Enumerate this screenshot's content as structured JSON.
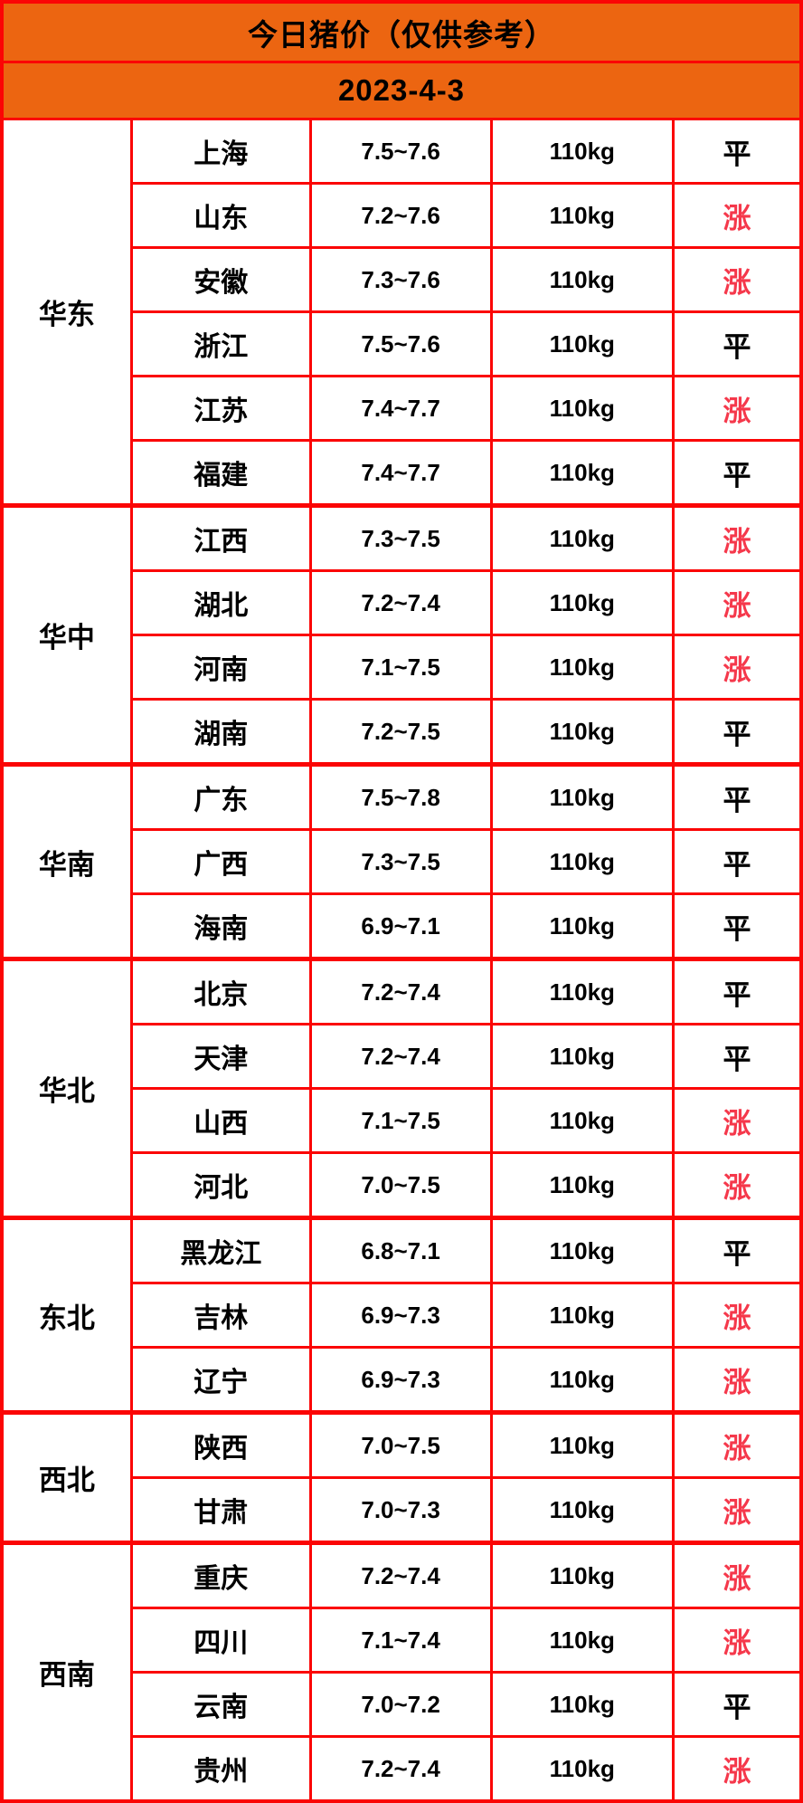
{
  "title": "今日猪价（仅供参考）",
  "date": "2023-4-3",
  "colors": {
    "header_orange": "#EC6511",
    "grid_red": "#FB0505",
    "rise_red": "#F5384B",
    "flat_black": "#000000",
    "cell_white": "#FFFFFF"
  },
  "status_legend": {
    "rise": "涨",
    "flat": "平"
  },
  "table": {
    "groups": [
      {
        "region": "华东",
        "rows": [
          {
            "province": "上海",
            "price": "7.5~7.6",
            "weight": "110kg",
            "status": "平",
            "trend": "flat"
          },
          {
            "province": "山东",
            "price": "7.2~7.6",
            "weight": "110kg",
            "status": "涨",
            "trend": "rise"
          },
          {
            "province": "安徽",
            "price": "7.3~7.6",
            "weight": "110kg",
            "status": "涨",
            "trend": "rise"
          },
          {
            "province": "浙江",
            "price": "7.5~7.6",
            "weight": "110kg",
            "status": "平",
            "trend": "flat"
          },
          {
            "province": "江苏",
            "price": "7.4~7.7",
            "weight": "110kg",
            "status": "涨",
            "trend": "rise"
          },
          {
            "province": "福建",
            "price": "7.4~7.7",
            "weight": "110kg",
            "status": "平",
            "trend": "flat"
          }
        ]
      },
      {
        "region": "华中",
        "rows": [
          {
            "province": "江西",
            "price": "7.3~7.5",
            "weight": "110kg",
            "status": "涨",
            "trend": "rise"
          },
          {
            "province": "湖北",
            "price": "7.2~7.4",
            "weight": "110kg",
            "status": "涨",
            "trend": "rise"
          },
          {
            "province": "河南",
            "price": "7.1~7.5",
            "weight": "110kg",
            "status": "涨",
            "trend": "rise"
          },
          {
            "province": "湖南",
            "price": "7.2~7.5",
            "weight": "110kg",
            "status": "平",
            "trend": "flat"
          }
        ]
      },
      {
        "region": "华南",
        "rows": [
          {
            "province": "广东",
            "price": "7.5~7.8",
            "weight": "110kg",
            "status": "平",
            "trend": "flat"
          },
          {
            "province": "广西",
            "price": "7.3~7.5",
            "weight": "110kg",
            "status": "平",
            "trend": "flat"
          },
          {
            "province": "海南",
            "price": "6.9~7.1",
            "weight": "110kg",
            "status": "平",
            "trend": "flat"
          }
        ]
      },
      {
        "region": "华北",
        "rows": [
          {
            "province": "北京",
            "price": "7.2~7.4",
            "weight": "110kg",
            "status": "平",
            "trend": "flat"
          },
          {
            "province": "天津",
            "price": "7.2~7.4",
            "weight": "110kg",
            "status": "平",
            "trend": "flat"
          },
          {
            "province": "山西",
            "price": "7.1~7.5",
            "weight": "110kg",
            "status": "涨",
            "trend": "rise"
          },
          {
            "province": "河北",
            "price": "7.0~7.5",
            "weight": "110kg",
            "status": "涨",
            "trend": "rise"
          }
        ]
      },
      {
        "region": "东北",
        "rows": [
          {
            "province": "黑龙江",
            "price": "6.8~7.1",
            "weight": "110kg",
            "status": "平",
            "trend": "flat"
          },
          {
            "province": "吉林",
            "price": "6.9~7.3",
            "weight": "110kg",
            "status": "涨",
            "trend": "rise"
          },
          {
            "province": "辽宁",
            "price": "6.9~7.3",
            "weight": "110kg",
            "status": "涨",
            "trend": "rise"
          }
        ]
      },
      {
        "region": "西北",
        "rows": [
          {
            "province": "陕西",
            "price": "7.0~7.5",
            "weight": "110kg",
            "status": "涨",
            "trend": "rise"
          },
          {
            "province": "甘肃",
            "price": "7.0~7.3",
            "weight": "110kg",
            "status": "涨",
            "trend": "rise"
          }
        ]
      },
      {
        "region": "西南",
        "rows": [
          {
            "province": "重庆",
            "price": "7.2~7.4",
            "weight": "110kg",
            "status": "涨",
            "trend": "rise"
          },
          {
            "province": "四川",
            "price": "7.1~7.4",
            "weight": "110kg",
            "status": "涨",
            "trend": "rise"
          },
          {
            "province": "云南",
            "price": "7.0~7.2",
            "weight": "110kg",
            "status": "平",
            "trend": "flat"
          },
          {
            "province": "贵州",
            "price": "7.2~7.4",
            "weight": "110kg",
            "status": "涨",
            "trend": "rise"
          }
        ]
      }
    ]
  }
}
